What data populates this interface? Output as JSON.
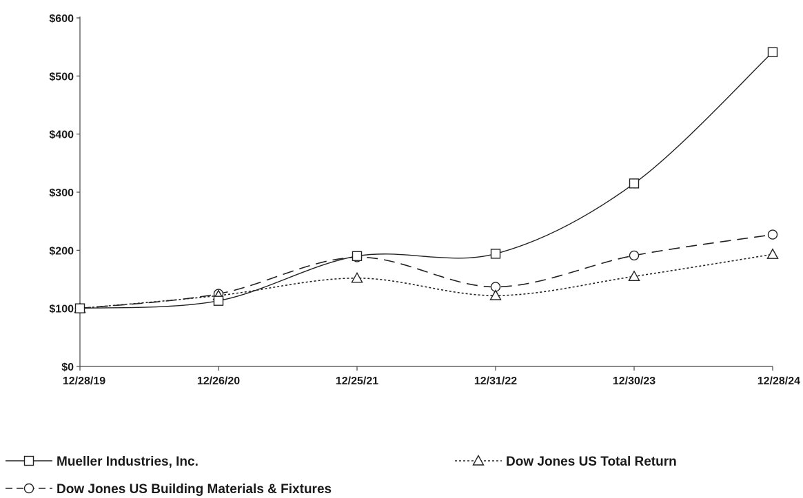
{
  "chart_data": {
    "type": "line",
    "categories": [
      "12/28/19",
      "12/26/20",
      "12/25/21",
      "12/31/22",
      "12/30/23",
      "12/28/24"
    ],
    "ylim": [
      0,
      600
    ],
    "yticks": [
      0,
      100,
      200,
      300,
      400,
      500,
      600
    ],
    "ytick_labels": [
      "$0",
      "$100",
      "$200",
      "$300",
      "$400",
      "$500",
      "$600"
    ],
    "grid": false,
    "legend_position": "bottom",
    "series": [
      {
        "name": "Mueller Industries, Inc.",
        "marker": "square",
        "line_style": "solid",
        "color": "#222222",
        "values": [
          100,
          113,
          190,
          194,
          315,
          541
        ]
      },
      {
        "name": "Dow Jones US Total Return",
        "marker": "triangle",
        "line_style": "dotted",
        "color": "#222222",
        "values": [
          100,
          122,
          152,
          122,
          155,
          193
        ]
      },
      {
        "name": "Dow Jones US Building Materials & Fixtures",
        "marker": "circle",
        "line_style": "dashed",
        "color": "#222222",
        "values": [
          100,
          125,
          188,
          137,
          191,
          227
        ]
      }
    ]
  }
}
